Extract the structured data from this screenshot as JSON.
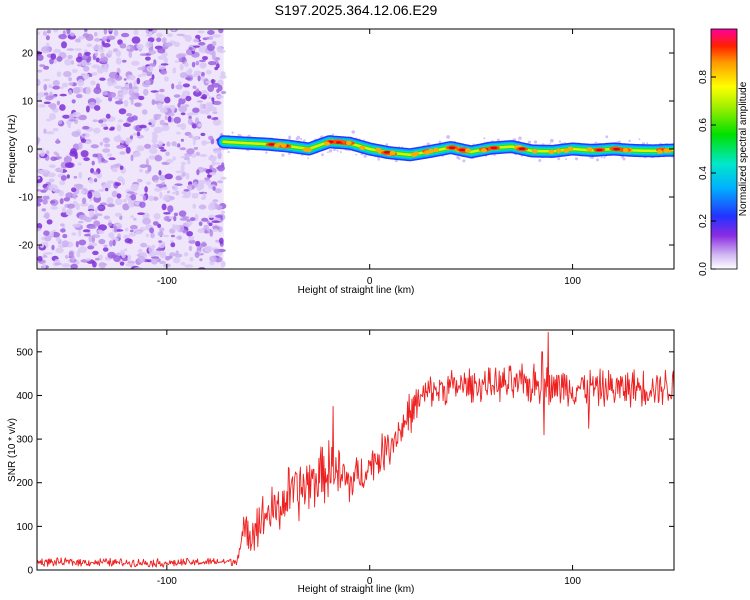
{
  "title": "S197.2025.364.12.06.E29",
  "chart_data": [
    {
      "type": "heatmap",
      "name": "spectrogram",
      "xlabel": "Height of straight line (km)",
      "ylabel": "Frequency (Hz)",
      "xlim": [
        -164,
        150
      ],
      "ylim": [
        -25,
        25
      ],
      "x_ticks": [
        -100,
        0,
        100
      ],
      "y_ticks": [
        -20,
        -10,
        0,
        10,
        20
      ],
      "noise_region_x": [
        -164,
        -72
      ],
      "signal_start_x": -72,
      "signal_track": {
        "x": [
          -72,
          -60,
          -50,
          -40,
          -30,
          -20,
          -10,
          0,
          10,
          20,
          30,
          40,
          50,
          60,
          70,
          80,
          90,
          100,
          110,
          120,
          130,
          140,
          150
        ],
        "freq": [
          1.5,
          1.2,
          1.0,
          0.6,
          0.0,
          1.5,
          1.2,
          0.0,
          -0.8,
          -1.2,
          -0.5,
          0.3,
          -0.6,
          0.2,
          0.5,
          -0.4,
          -0.5,
          0.0,
          -0.3,
          0.0,
          -0.3,
          -0.4,
          -0.2
        ]
      },
      "colorbar": {
        "label": "Normalized spectral amplitude",
        "range": [
          0,
          1
        ],
        "ticks": [
          "0.0",
          "0.2",
          "0.4",
          "0.6",
          "0.8"
        ],
        "tick_values": [
          0.0,
          0.2,
          0.4,
          0.6,
          0.8
        ]
      }
    },
    {
      "type": "line",
      "name": "snr",
      "xlabel": "Height of straight line (km)",
      "ylabel": "SNR (10 * v/v)",
      "xlim": [
        -164,
        150
      ],
      "ylim": [
        0,
        550
      ],
      "x_ticks": [
        -100,
        0,
        100
      ],
      "y_ticks": [
        0,
        100,
        200,
        300,
        400,
        500
      ],
      "color": "#ee2020",
      "envelope": {
        "x": [
          -164,
          -140,
          -120,
          -100,
          -80,
          -66,
          -62,
          -55,
          -50,
          -45,
          -40,
          -35,
          -30,
          -25,
          -20,
          -15,
          -10,
          -5,
          0,
          5,
          10,
          15,
          20,
          25,
          30,
          40,
          60,
          80,
          100,
          120,
          140,
          150
        ],
        "mean": [
          18,
          18,
          17,
          16,
          18,
          20,
          80,
          110,
          130,
          140,
          170,
          180,
          200,
          210,
          230,
          210,
          200,
          215,
          240,
          260,
          290,
          320,
          360,
          390,
          410,
          420,
          425,
          425,
          420,
          415,
          420,
          420
        ],
        "spread": [
          10,
          10,
          10,
          10,
          10,
          10,
          50,
          60,
          60,
          60,
          70,
          70,
          70,
          70,
          70,
          70,
          60,
          50,
          40,
          45,
          50,
          50,
          50,
          40,
          40,
          40,
          40,
          50,
          45,
          45,
          45,
          45
        ]
      },
      "spikes": [
        {
          "x": -18,
          "y": 375
        },
        {
          "x": 88,
          "y": 545
        },
        {
          "x": 85,
          "y": 500
        },
        {
          "x": 108,
          "y": 325
        },
        {
          "x": 86,
          "y": 310
        }
      ]
    }
  ]
}
